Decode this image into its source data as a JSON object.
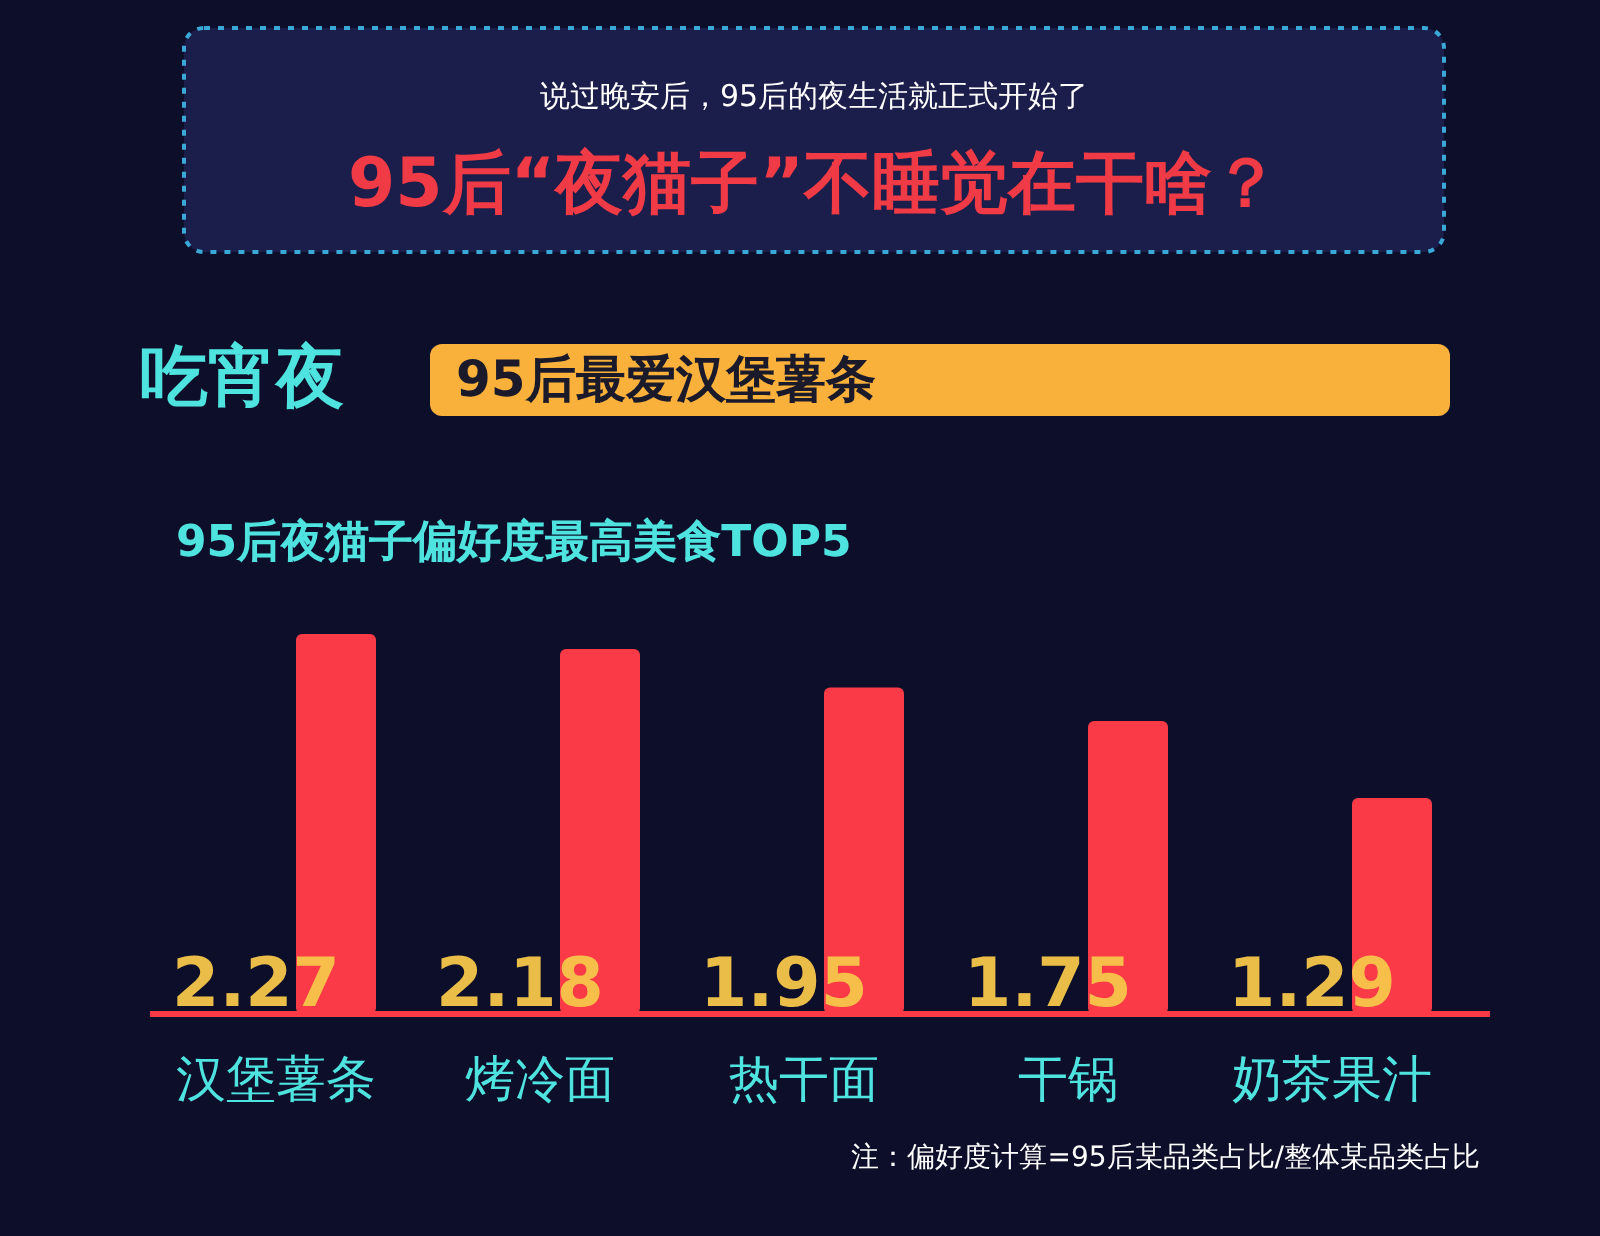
{
  "chart_data": {
    "type": "bar",
    "title": "95后“夜猫子”不睡觉在干啥？",
    "subtitle": "说过晚安后，95后的夜生活就正式开始了",
    "annotations": [
      "吃宵夜",
      "95后最爱汉堡薯条",
      "95后夜猫子偏好度最高美食TOP5",
      "注：偏好度计算=95后某品类占比/整体某品类占比"
    ],
    "categories": [
      "汉堡薯条",
      "烤冷面",
      "热干面",
      "干锅",
      "奶茶果汁"
    ],
    "values": [
      2.27,
      2.18,
      1.95,
      1.75,
      1.29
    ],
    "color": "#fb3a48",
    "data_labels": true
  }
}
